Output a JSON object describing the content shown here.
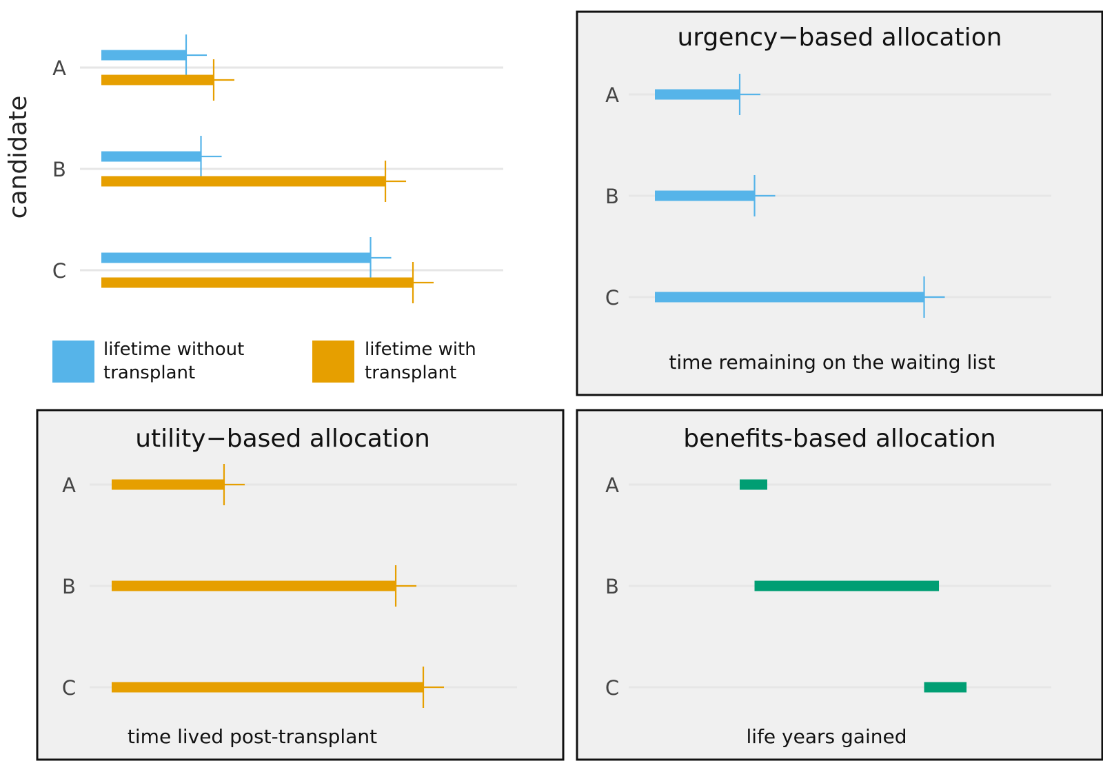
{
  "colors": {
    "without": "#56B4E9",
    "with": "#E69F00",
    "gained": "#009E73",
    "panel_bg": "#f0f0f0",
    "grid": "#e6e6e6"
  },
  "overview": {
    "ylabel": "candidate",
    "legend": [
      {
        "key": "without",
        "line1": "lifetime without",
        "line2": "transplant"
      },
      {
        "key": "with",
        "line1": "lifetime with",
        "line2": "transplant"
      }
    ]
  },
  "panels": {
    "urgency": {
      "title": "urgency−based allocation",
      "xlabel": "time remaining on the waiting list"
    },
    "utility": {
      "title": "utility−based allocation",
      "xlabel": "time lived post-transplant"
    },
    "benefits": {
      "title": "benefits-based allocation",
      "xlabel": "life years gained"
    }
  },
  "chart_data": [
    {
      "type": "bar",
      "panel": "overview",
      "ylabel": "candidate",
      "categories": [
        "A",
        "B",
        "C"
      ],
      "series": [
        {
          "name": "lifetime without transplant",
          "values": [
            2.0,
            2.35,
            6.35
          ]
        },
        {
          "name": "lifetime with transplant",
          "values": [
            2.65,
            6.7,
            7.35
          ]
        }
      ],
      "censored_marker": true,
      "grid": true
    },
    {
      "type": "bar",
      "panel": "urgency",
      "title": "urgency−based allocation",
      "xlabel": "time remaining on the waiting list",
      "categories": [
        "A",
        "B",
        "C"
      ],
      "values": [
        2.0,
        2.35,
        6.35
      ]
    },
    {
      "type": "bar",
      "panel": "utility",
      "title": "utility−based allocation",
      "xlabel": "time lived post-transplant",
      "categories": [
        "A",
        "B",
        "C"
      ],
      "values": [
        2.65,
        6.7,
        7.35
      ]
    },
    {
      "type": "bar",
      "panel": "benefits",
      "title": "benefits-based allocation",
      "xlabel": "life years gained",
      "categories": [
        "A",
        "B",
        "C"
      ],
      "ranges": [
        [
          2.0,
          2.65
        ],
        [
          2.35,
          6.7
        ],
        [
          6.35,
          7.35
        ]
      ]
    }
  ]
}
